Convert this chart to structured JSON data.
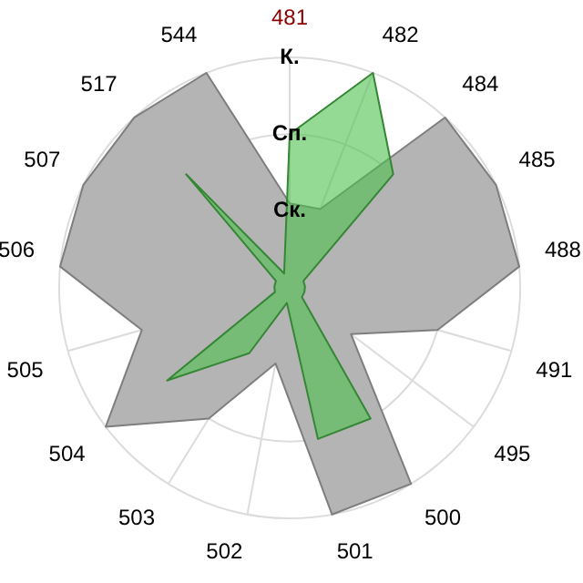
{
  "chart_data": {
    "type": "radar",
    "categories": [
      "481",
      "482",
      "484",
      "485",
      "488",
      "491",
      "495",
      "500",
      "501",
      "502",
      "503",
      "504",
      "505",
      "506",
      "507",
      "517",
      "544"
    ],
    "series": [
      {
        "color": "#b4b4b4",
        "values": [
          1.1,
          1.1,
          3,
          3,
          3,
          2,
          1,
          3,
          3,
          1,
          2,
          3,
          2,
          3,
          3,
          3,
          3
        ]
      },
      {
        "color": "#4cbf4c",
        "values": [
          2,
          3,
          2,
          0.2,
          0.2,
          0.2,
          0.2,
          2,
          2,
          0.2,
          1,
          2,
          0.2,
          0.2,
          0.2,
          2,
          0.2
        ]
      }
    ],
    "ylim": [
      0,
      3
    ],
    "yticks": [
      {
        "value": 1,
        "label": "Ск."
      },
      {
        "value": 2,
        "label": "Сп."
      },
      {
        "value": 3,
        "label": "К."
      }
    ],
    "grid": true,
    "legend": false
  }
}
